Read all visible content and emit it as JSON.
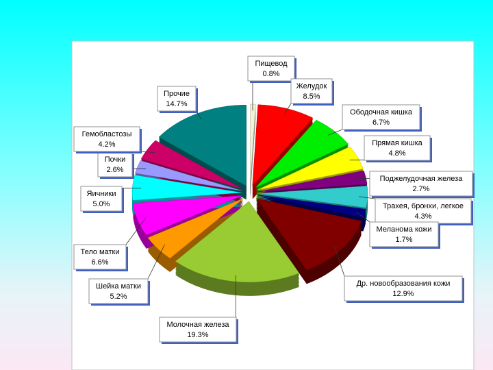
{
  "chart_data": {
    "type": "pie",
    "categories": [
      "Пищевод",
      "Желудок",
      "Ободочная кишка",
      "Прямая кишка",
      "Поджелудочная железа",
      "Трахея, бронхи, легкое",
      "Меланома кожи",
      "Др. новообразования кожи",
      "Молочная железа",
      "Шейка матки",
      "Тело матки",
      "Яичники",
      "Почки",
      "Гемобластозы",
      "Прочие"
    ],
    "values": [
      0.8,
      8.5,
      6.7,
      4.8,
      2.7,
      4.3,
      1.7,
      12.9,
      19.3,
      5.2,
      6.6,
      5.0,
      2.6,
      4.2,
      14.7
    ],
    "value_labels": [
      "0.8%",
      "8.5%",
      "6.7%",
      "4.8%",
      "2.7%",
      "4.3%",
      "1.7%",
      "12.9%",
      "19.3%",
      "5.2%",
      "6.6%",
      "5.0%",
      "2.6%",
      "4.2%",
      "14.7%"
    ],
    "colors": [
      "#f2f2d8",
      "#ff0000",
      "#00ee00",
      "#ffff00",
      "#800080",
      "#33cccc",
      "#000080",
      "#800000",
      "#99cc33",
      "#ff9900",
      "#ff00ff",
      "#00ffff",
      "#9999ff",
      "#cc0066",
      "#008080"
    ]
  }
}
